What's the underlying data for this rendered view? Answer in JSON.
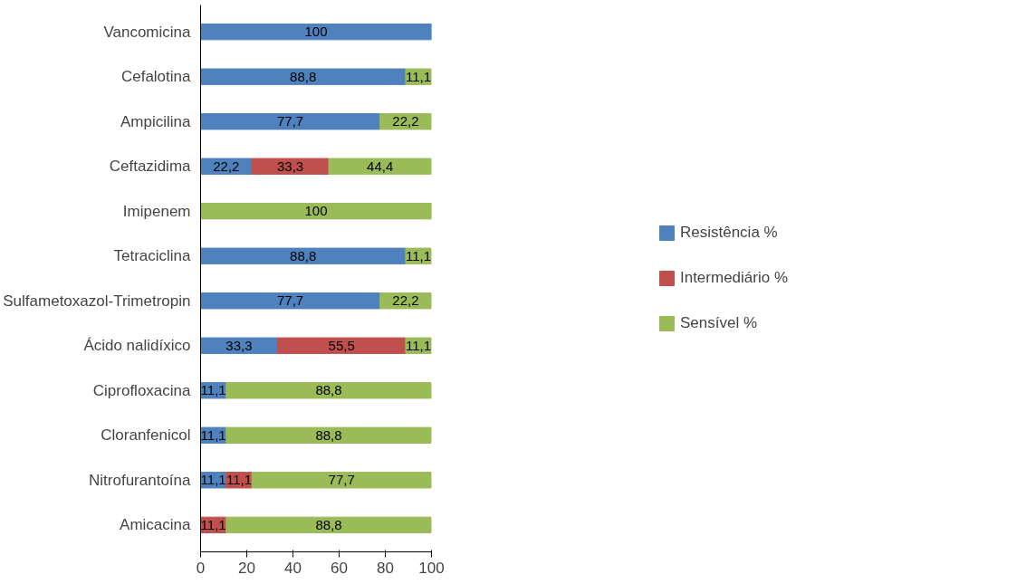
{
  "chart_data": {
    "type": "bar",
    "orientation": "horizontal",
    "stacked": true,
    "categories": [
      "Vancomicina",
      "Cefalotina",
      "Ampicilina",
      "Ceftazidima",
      "Imipenem",
      "Tetraciclina",
      "Sulfametoxazol-Trimetropin",
      "Ácido nalidíxico",
      "Ciprofloxacina",
      "Cloranfenicol",
      "Nitrofurantoína",
      "Amicacina"
    ],
    "series": [
      {
        "name": "Resistência %",
        "color": "#4f81bd",
        "values": [
          100,
          88.8,
          77.7,
          22.2,
          null,
          88.8,
          77.7,
          33.3,
          11.1,
          11.1,
          11.1,
          null
        ],
        "value_labels": [
          "100",
          "88,8",
          "77,7",
          "22,2",
          null,
          "88,8",
          "77,7",
          "33,3",
          "11,1",
          "11,1",
          "11,1",
          null
        ]
      },
      {
        "name": "Intermediário %",
        "color": "#c0504d",
        "values": [
          null,
          null,
          null,
          33.3,
          null,
          null,
          null,
          55.5,
          null,
          null,
          11.1,
          11.1
        ],
        "value_labels": [
          null,
          null,
          null,
          "33,3",
          null,
          null,
          null,
          "55,5",
          null,
          null,
          "11,1",
          "11,1"
        ]
      },
      {
        "name": "Sensível %",
        "color": "#9bbb59",
        "values": [
          null,
          11.1,
          22.2,
          44.4,
          100,
          11.1,
          22.2,
          11.1,
          88.8,
          88.8,
          77.7,
          88.8
        ],
        "value_labels": [
          null,
          "11,1",
          "22,2",
          "44,4",
          "100",
          "11,1",
          "22,2",
          "11,1",
          "88,8",
          "88,8",
          "77,7",
          "88,8"
        ]
      }
    ],
    "xlim": [
      0,
      100
    ],
    "xticks": [
      0,
      20,
      40,
      60,
      80,
      100
    ],
    "grid": false,
    "legend": "right"
  }
}
